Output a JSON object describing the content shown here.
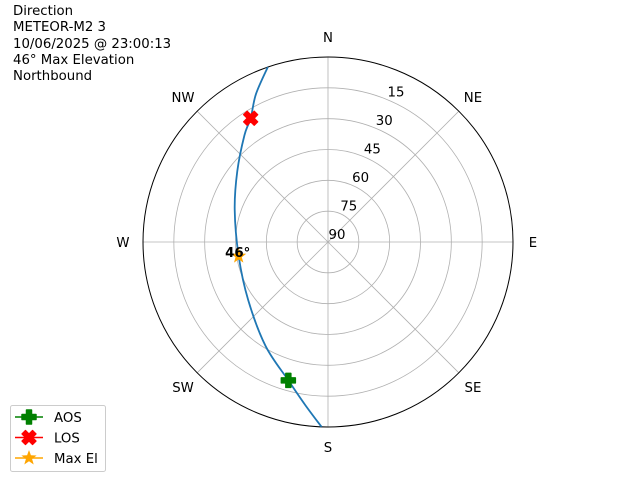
{
  "title_lines": [
    "Direction",
    "METEOR-M2 3",
    "10/06/2025 @ 23:00:13",
    "46° Max Elevation",
    "Northbound"
  ],
  "chart_data": {
    "type": "polar-line",
    "projection": "sky plot: azimuth clockwise from North, radius = 90 - elevation",
    "azimuth_labels": [
      {
        "label": "N",
        "az": 0
      },
      {
        "label": "NE",
        "az": 45
      },
      {
        "label": "E",
        "az": 90
      },
      {
        "label": "SE",
        "az": 135
      },
      {
        "label": "S",
        "az": 180
      },
      {
        "label": "SW",
        "az": 225
      },
      {
        "label": "W",
        "az": 270
      },
      {
        "label": "NW",
        "az": 315
      }
    ],
    "elevation_ticks": [
      15,
      30,
      45,
      60,
      75,
      90
    ],
    "elevation_range": [
      0,
      90
    ],
    "grid": true,
    "track": {
      "color": "#1f77b4",
      "points": [
        {
          "az": 182,
          "el": 0
        },
        {
          "az": 188,
          "el": 10
        },
        {
          "az": 196,
          "el": 20
        },
        {
          "az": 211,
          "el": 31
        },
        {
          "az": 234,
          "el": 42
        },
        {
          "az": 261,
          "el": 46
        },
        {
          "az": 289,
          "el": 42
        },
        {
          "az": 308,
          "el": 34
        },
        {
          "az": 322,
          "el": 24
        },
        {
          "az": 328,
          "el": 19
        },
        {
          "az": 334,
          "el": 10
        },
        {
          "az": 341,
          "el": 0
        }
      ]
    },
    "markers": [
      {
        "name": "AOS",
        "az": 196,
        "el": 20,
        "color": "#008000",
        "shape": "plus"
      },
      {
        "name": "LOS",
        "az": 328,
        "el": 19,
        "color": "#ff0000",
        "shape": "x"
      },
      {
        "name": "Max El",
        "az": 261,
        "el": 46,
        "color": "#ffa500",
        "shape": "star"
      }
    ],
    "annotation": {
      "text": "46°",
      "az": 261,
      "el": 46
    },
    "legend": {
      "placement": "lower-left",
      "entries": [
        "AOS",
        "LOS",
        "Max El"
      ]
    }
  }
}
